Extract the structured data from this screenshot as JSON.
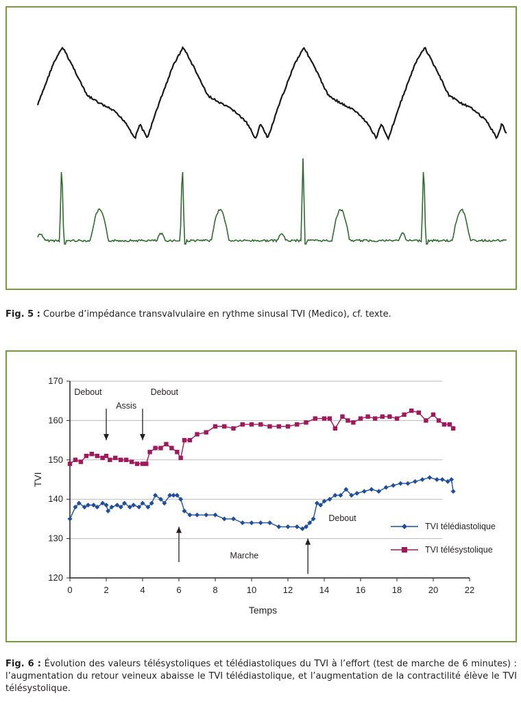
{
  "figure5": {
    "caption_label": "Fig. 5 :",
    "caption_text": "Courbe d’impédance transvalvulaire en rythme sinusal TVI (Medico), cf. texte.",
    "trace_colors": {
      "impedance": "#1a1a1a",
      "ecg": "#2e6b2e"
    }
  },
  "figure6": {
    "caption_label": "Fig. 6 :",
    "caption_text": "Évolution des valeurs télésystoliques et télédiastoliques du TVI à l’effort (test de marche de 6 minutes) : l’augmentation du retour veineux abaisse le TVI télédiastolique, et l’augmentation de la contractilité élève le TVI télésystolique."
  },
  "chart_data": {
    "type": "line",
    "title": "",
    "xlabel": "Temps",
    "ylabel": "TVI",
    "xlim": [
      0,
      22
    ],
    "ylim": [
      120,
      170
    ],
    "x_ticks": [
      0,
      2,
      4,
      6,
      8,
      10,
      12,
      14,
      16,
      18,
      20,
      22
    ],
    "y_ticks": [
      120,
      130,
      140,
      150,
      160,
      170
    ],
    "grid": "horizontal",
    "legend_position": "right",
    "annotations": [
      {
        "text": "Debout",
        "x": 1.0,
        "y": 166.5
      },
      {
        "text": "Assis",
        "x": 3.1,
        "y": 163.0
      },
      {
        "text": "Debout",
        "x": 5.2,
        "y": 166.5
      },
      {
        "text": "Marche",
        "x": 9.6,
        "y": 125.0
      },
      {
        "text": "Debout",
        "x": 15.0,
        "y": 134.5
      }
    ],
    "arrows": [
      {
        "x": 2,
        "from_y": 163,
        "to_y": 155,
        "direction": "down"
      },
      {
        "x": 4,
        "from_y": 163,
        "to_y": 155,
        "direction": "down"
      },
      {
        "x": 6,
        "from_y": 124,
        "to_y": 133,
        "direction": "up"
      },
      {
        "x": 13.1,
        "from_y": 121,
        "to_y": 130,
        "direction": "up"
      }
    ],
    "series": [
      {
        "name": "TVI télédiastolique",
        "color": "#1f4e9c",
        "marker": "diamond",
        "x": [
          0.0,
          0.3,
          0.5,
          0.8,
          1.0,
          1.3,
          1.5,
          1.8,
          2.0,
          2.1,
          2.3,
          2.6,
          2.8,
          3.0,
          3.3,
          3.5,
          3.8,
          4.0,
          4.3,
          4.5,
          4.7,
          5.0,
          5.2,
          5.5,
          5.7,
          5.9,
          6.1,
          6.3,
          6.6,
          7.0,
          7.5,
          8.0,
          8.5,
          9.0,
          9.5,
          10.0,
          10.5,
          11.0,
          11.5,
          12.0,
          12.5,
          12.8,
          13.0,
          13.2,
          13.4,
          13.6,
          13.8,
          14.0,
          14.3,
          14.6,
          14.9,
          15.2,
          15.5,
          15.8,
          16.2,
          16.6,
          17.0,
          17.4,
          17.8,
          18.2,
          18.6,
          19.0,
          19.4,
          19.8,
          20.2,
          20.5,
          20.8,
          21.0,
          21.1
        ],
        "values": [
          135,
          138,
          139,
          138,
          138.5,
          138.5,
          138,
          139,
          138.5,
          137,
          138,
          138.5,
          138,
          139,
          138,
          138.5,
          138,
          139,
          138,
          139,
          141,
          140,
          139,
          141,
          141,
          141,
          140,
          137,
          136,
          136,
          136,
          136,
          135,
          135,
          134,
          134,
          134,
          134,
          133,
          133,
          133,
          132.5,
          133,
          134,
          135,
          139,
          138.5,
          139.5,
          140,
          141,
          141,
          142.5,
          141,
          141.5,
          142,
          142.5,
          142,
          143,
          143.5,
          144,
          144,
          144.5,
          145,
          145.5,
          145,
          145,
          144.5,
          145,
          142
        ]
      },
      {
        "name": "TVI télésystolique",
        "color": "#a0195a",
        "marker": "square",
        "x": [
          0.0,
          0.3,
          0.6,
          0.9,
          1.2,
          1.5,
          1.8,
          2.0,
          2.2,
          2.5,
          2.8,
          3.1,
          3.4,
          3.7,
          4.0,
          4.2,
          4.4,
          4.7,
          5.0,
          5.3,
          5.6,
          5.9,
          6.1,
          6.3,
          6.6,
          7.0,
          7.5,
          8.0,
          8.5,
          9.0,
          9.5,
          10.0,
          10.5,
          11.0,
          11.5,
          12.0,
          12.5,
          13.0,
          13.5,
          14.0,
          14.3,
          14.6,
          15.0,
          15.3,
          15.6,
          16.0,
          16.4,
          16.8,
          17.2,
          17.6,
          18.0,
          18.4,
          18.8,
          19.2,
          19.6,
          20.0,
          20.3,
          20.6,
          20.9,
          21.1
        ],
        "values": [
          149,
          150,
          149.5,
          151,
          151.5,
          151,
          150.5,
          151,
          150,
          150.5,
          150,
          150,
          149.5,
          149,
          149,
          149,
          152,
          153,
          153,
          154,
          153,
          152,
          150.5,
          155,
          155,
          156.5,
          157,
          158.5,
          158.5,
          158,
          159,
          159,
          159,
          158.5,
          158.5,
          158.5,
          159,
          159.5,
          160.5,
          160.5,
          160.5,
          158,
          161,
          160,
          159.5,
          160.5,
          161,
          160.5,
          161,
          161,
          160.5,
          161.5,
          162.5,
          162,
          160,
          161.5,
          160,
          159,
          159,
          158
        ]
      }
    ]
  }
}
